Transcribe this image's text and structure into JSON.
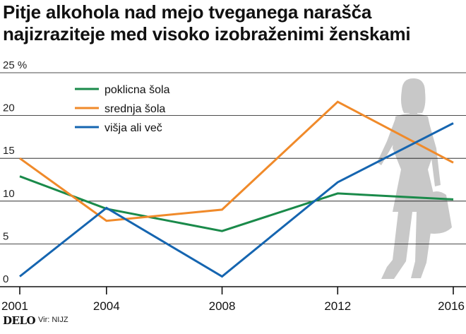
{
  "title_lines": [
    "Pitje alkohola nad mejo tveganega narašča",
    "najizraziteje med visoko izobraženimi ženskami"
  ],
  "footer": {
    "brand": "DELO",
    "source": "Vir: NIJZ"
  },
  "colors": {
    "axis": "#111111",
    "grid": "#111111",
    "silhouette": "#c8c8c8"
  },
  "chart_data": {
    "type": "line",
    "x": [
      2001,
      2004,
      2008,
      2012,
      2016
    ],
    "x_tick_labels": [
      "2001",
      "2004",
      "2008",
      "2012",
      "2016"
    ],
    "y_tick_labels": [
      "0",
      "5",
      "10",
      "15",
      "20",
      "25 %"
    ],
    "y_ticks": [
      0,
      5,
      10,
      15,
      20,
      25
    ],
    "ylim": [
      0,
      25
    ],
    "grid": true,
    "legend_position": "top-left",
    "series": [
      {
        "name": "poklicna šola",
        "color": "#1a8a4a",
        "values": [
          12.9,
          9.1,
          6.5,
          10.9,
          10.2
        ]
      },
      {
        "name": "srednja šola",
        "color": "#f08a2a",
        "values": [
          15.0,
          7.7,
          9.0,
          21.6,
          14.5
        ]
      },
      {
        "name": "višja ali več",
        "color": "#1565b0",
        "values": [
          1.2,
          9.2,
          1.2,
          12.2,
          19.1
        ]
      }
    ]
  }
}
